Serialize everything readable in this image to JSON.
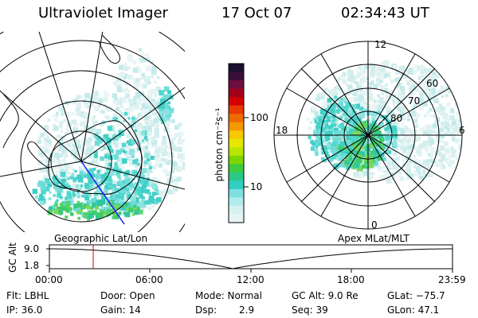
{
  "header": {
    "instrument": "Ultraviolet Imager",
    "date": "17 Oct 07",
    "time": "02:34:43 UT"
  },
  "colorbar": {
    "unit_label": "photon cm⁻²s⁻¹",
    "tick_100": "100",
    "tick_10": "10",
    "colors_top_to_bottom": [
      "#1a0f2e",
      "#3b0f3a",
      "#6e0f3f",
      "#a3001a",
      "#d40000",
      "#e83a00",
      "#f06a00",
      "#f39800",
      "#f5c800",
      "#e6e600",
      "#b8e600",
      "#7ed600",
      "#3ecc3e",
      "#2cc88a",
      "#2fcfc2",
      "#7fdfe0",
      "#b3ecec",
      "#d6f1f1",
      "#e6f4f4"
    ]
  },
  "left_map": {
    "label": "Geographic Lat/Lon"
  },
  "right_map": {
    "label": "Apex MLat/MLT",
    "mlt_labels": {
      "top": "12",
      "left": "18",
      "right": "6",
      "bottom": "0"
    },
    "lat_labels": [
      "60",
      "70",
      "80"
    ]
  },
  "altitude_plot": {
    "ylabel": "GC Alt",
    "yticks": [
      "9.0",
      "1.8"
    ],
    "xticks": [
      "00:00",
      "06:00",
      "12:00",
      "18:00",
      "23:59"
    ],
    "marker_time": "02:34:43"
  },
  "info": {
    "filter": "Flt: LBHL",
    "ip": "IP: 36.0",
    "door": "Door: Open",
    "gain": "Gain: 14",
    "mode": "Mode: Normal",
    "dsp_label": "Dsp:",
    "dsp_value": "2.9",
    "gc_alt": "GC Alt: 9.0 Re",
    "seq": "Seq: 39",
    "glat": "GLat: −75.7",
    "glon": "GLon:  47.1"
  }
}
